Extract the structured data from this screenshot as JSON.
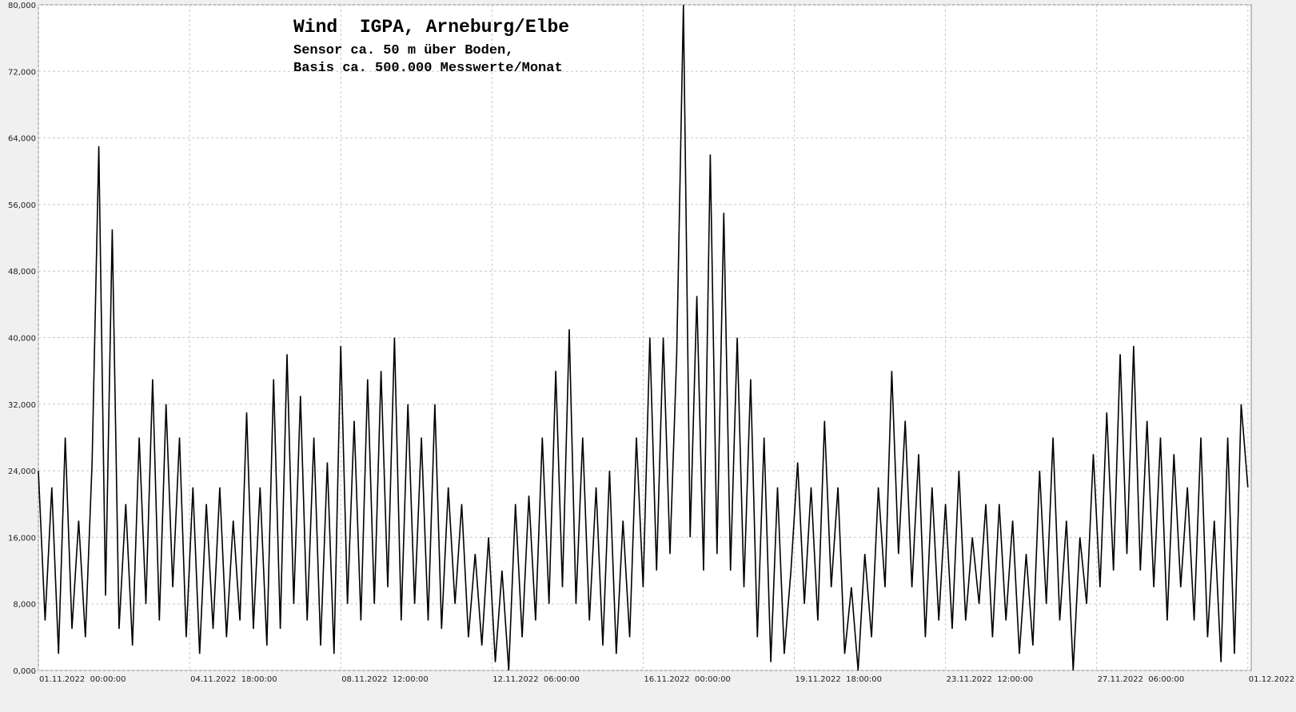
{
  "chart_data": {
    "type": "line",
    "title": "Wind  IGPA, Arneburg/Elbe",
    "subtitle": [
      "Sensor ca. 50 m über Boden,",
      "Basis ca. 500.000 Messwerte/Monat"
    ],
    "x": [
      0,
      4,
      8,
      12,
      16,
      20,
      24,
      28,
      32,
      36,
      40,
      44,
      48,
      52,
      56,
      60,
      64,
      68,
      72,
      76,
      80,
      84,
      88,
      92,
      96,
      100,
      104,
      108,
      112,
      116,
      120,
      124,
      128,
      132,
      136,
      140,
      144,
      148,
      152,
      156,
      160,
      164,
      168,
      172,
      176,
      180,
      184,
      188,
      192,
      196,
      200,
      204,
      208,
      212,
      216,
      220,
      224,
      228,
      232,
      236,
      240,
      244,
      248,
      252,
      256,
      260,
      264,
      268,
      272,
      276,
      280,
      284,
      288,
      292,
      296,
      300,
      304,
      308,
      312,
      316,
      320,
      324,
      328,
      332,
      336,
      340,
      344,
      348,
      352,
      356,
      360,
      364,
      368,
      372,
      376,
      380,
      384,
      388,
      392,
      396,
      400,
      404,
      408,
      412,
      416,
      420,
      424,
      428,
      432,
      436,
      440,
      444,
      448,
      452,
      456,
      460,
      464,
      468,
      472,
      476,
      480,
      484,
      488,
      492,
      496,
      500,
      504,
      508,
      512,
      516,
      520,
      524,
      528,
      532,
      536,
      540,
      544,
      548,
      552,
      556,
      560,
      564,
      568,
      572,
      576,
      580,
      584,
      588,
      592,
      596,
      600,
      604,
      608,
      612,
      616,
      620,
      624,
      628,
      632,
      636,
      640,
      644,
      648,
      652,
      656,
      660,
      664,
      668,
      672,
      676,
      680,
      684,
      688,
      692,
      696,
      700,
      704,
      708,
      712,
      716,
      720
    ],
    "series": [
      {
        "color": "#000000",
        "values": [
          24000,
          6000,
          22000,
          2000,
          28000,
          5000,
          18000,
          4000,
          25000,
          63000,
          9000,
          53000,
          5000,
          20000,
          3000,
          28000,
          8000,
          35000,
          6000,
          32000,
          10000,
          28000,
          4000,
          22000,
          2000,
          20000,
          5000,
          22000,
          4000,
          18000,
          6000,
          31000,
          5000,
          22000,
          3000,
          35000,
          5000,
          38000,
          8000,
          33000,
          6000,
          28000,
          3000,
          25000,
          2000,
          39000,
          8000,
          30000,
          6000,
          35000,
          8000,
          36000,
          10000,
          40000,
          6000,
          32000,
          8000,
          28000,
          6000,
          32000,
          5000,
          22000,
          8000,
          20000,
          4000,
          14000,
          3000,
          16000,
          1000,
          12000,
          0,
          20000,
          4000,
          21000,
          6000,
          28000,
          8000,
          36000,
          10000,
          41000,
          8000,
          28000,
          6000,
          22000,
          3000,
          24000,
          2000,
          18000,
          4000,
          28000,
          10000,
          40000,
          12000,
          40000,
          14000,
          38000,
          80000,
          16000,
          45000,
          12000,
          62000,
          14000,
          55000,
          12000,
          40000,
          10000,
          35000,
          4000,
          28000,
          1000,
          22000,
          2000,
          12000,
          25000,
          8000,
          22000,
          6000,
          30000,
          10000,
          22000,
          2000,
          10000,
          0,
          14000,
          4000,
          22000,
          10000,
          36000,
          14000,
          30000,
          10000,
          26000,
          4000,
          22000,
          6000,
          20000,
          5000,
          24000,
          6000,
          16000,
          8000,
          20000,
          4000,
          20000,
          6000,
          18000,
          2000,
          14000,
          3000,
          24000,
          8000,
          28000,
          6000,
          18000,
          0,
          16000,
          8000,
          26000,
          10000,
          31000,
          12000,
          38000,
          14000,
          39000,
          12000,
          30000,
          10000,
          28000,
          6000,
          26000,
          10000,
          22000,
          6000,
          28000,
          4000,
          18000,
          1000,
          28000,
          2000,
          32000,
          22000
        ]
      }
    ],
    "xlim": [
      0,
      722
    ],
    "xticks": [
      {
        "value": 0,
        "label": "01.11.2022  00:00:00"
      },
      {
        "value": 90,
        "label": "04.11.2022  18:00:00"
      },
      {
        "value": 180,
        "label": "08.11.2022  12:00:00"
      },
      {
        "value": 270,
        "label": "12.11.2022  06:00:00"
      },
      {
        "value": 360,
        "label": "16.11.2022  00:00:00"
      },
      {
        "value": 450,
        "label": "19.11.2022  18:00:00"
      },
      {
        "value": 540,
        "label": "23.11.2022  12:00:00"
      },
      {
        "value": 630,
        "label": "27.11.2022  06:00:00"
      },
      {
        "value": 720,
        "label": "01.12.2022  00:00:00"
      }
    ],
    "ylim": [
      0,
      80000
    ],
    "yticks": [
      {
        "value": 0,
        "label": "0,000"
      },
      {
        "value": 8000,
        "label": "8,000"
      },
      {
        "value": 16000,
        "label": "16,000"
      },
      {
        "value": 24000,
        "label": "24,000"
      },
      {
        "value": 32000,
        "label": "32,000"
      },
      {
        "value": 40000,
        "label": "40,000"
      },
      {
        "value": 48000,
        "label": "48,000"
      },
      {
        "value": 56000,
        "label": "56,000"
      },
      {
        "value": 64000,
        "label": "64,000"
      },
      {
        "value": 72000,
        "label": "72,000"
      },
      {
        "value": 80000,
        "label": "80,000"
      }
    ],
    "grid": true
  }
}
